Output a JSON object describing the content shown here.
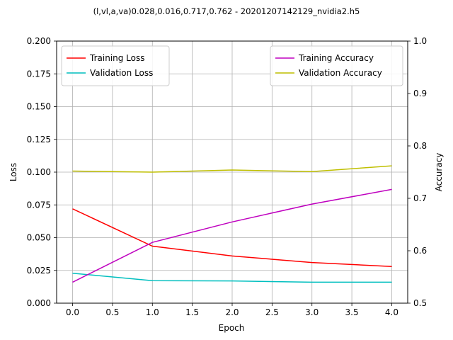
{
  "chart_data": {
    "type": "line",
    "title": "(l,vl,a,va)0.028,0.016,0.717,0.762 - 20201207142129_nvidia2.h5",
    "xlabel": "Epoch",
    "ylabel_left": "Loss",
    "ylabel_right": "Accuracy",
    "xlim": [
      -0.2,
      4.2
    ],
    "ylim_left": [
      0,
      0.2
    ],
    "ylim_right": [
      0.5,
      1.0
    ],
    "x_ticks": [
      0,
      0.5,
      1,
      1.5,
      2,
      2.5,
      3,
      3.5,
      4
    ],
    "x_tick_labels": [
      "0.0",
      "0.5",
      "1.0",
      "1.5",
      "2.0",
      "2.5",
      "3.0",
      "3.5",
      "4.0"
    ],
    "y_left_ticks": [
      0,
      0.025,
      0.05,
      0.075,
      0.1,
      0.125,
      0.15,
      0.175,
      0.2
    ],
    "y_left_tick_labels": [
      "0.000",
      "0.025",
      "0.050",
      "0.075",
      "0.100",
      "0.125",
      "0.150",
      "0.175",
      "0.200"
    ],
    "y_right_ticks": [
      0.5,
      0.6,
      0.7,
      0.8,
      0.9,
      1.0
    ],
    "y_right_tick_labels": [
      "0.5",
      "0.6",
      "0.7",
      "0.8",
      "0.9",
      "1.0"
    ],
    "grid": true,
    "x": [
      0,
      1,
      2,
      3,
      4
    ],
    "series": [
      {
        "name": "Training Loss",
        "axis": "left",
        "color": "#ff0000",
        "values": [
          0.072,
          0.0435,
          0.036,
          0.031,
          0.028
        ]
      },
      {
        "name": "Validation Loss",
        "axis": "left",
        "color": "#00bfbf",
        "values": [
          0.0228,
          0.0172,
          0.017,
          0.016,
          0.016
        ]
      },
      {
        "name": "Training Accuracy",
        "axis": "right",
        "color": "#bf00bf",
        "values": [
          0.54,
          0.616,
          0.655,
          0.689,
          0.717
        ]
      },
      {
        "name": "Validation Accuracy",
        "axis": "right",
        "color": "#bfbf00",
        "values": [
          0.752,
          0.75,
          0.754,
          0.751,
          0.762
        ]
      }
    ],
    "legend_left_placement": "upper-left",
    "legend_right_placement": "upper-right"
  }
}
